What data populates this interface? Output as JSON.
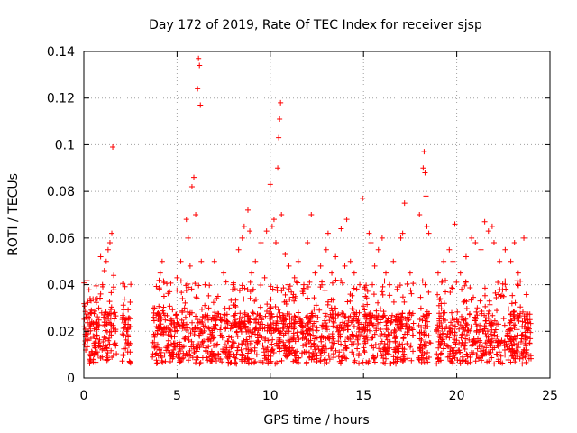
{
  "chart_data": {
    "type": "scatter",
    "title": "Day 172 of 2019, Rate Of TEC Index for receiver sjsp",
    "xlabel": "GPS time / hours",
    "ylabel": "ROTI / TECUs",
    "xlim": [
      0,
      25
    ],
    "ylim": [
      0,
      0.14
    ],
    "xticks": [
      0,
      5,
      10,
      15,
      20,
      25
    ],
    "yticks": [
      0,
      0.02,
      0.04,
      0.06,
      0.08,
      0.1,
      0.12,
      0.14
    ],
    "ytick_labels": [
      "0",
      "0.02",
      "0.04",
      "0.06",
      "0.08",
      "0.1",
      "0.12",
      "0.14"
    ],
    "grid": true,
    "marker": "+",
    "color": "#ff0000",
    "series": [
      {
        "name": "ROTI",
        "points": [
          [
            0.1,
            0.012
          ],
          [
            0.2,
            0.016
          ],
          [
            0.3,
            0.022
          ],
          [
            0.4,
            0.028
          ],
          [
            0.5,
            0.018
          ],
          [
            0.6,
            0.013
          ],
          [
            0.7,
            0.024
          ],
          [
            0.8,
            0.03
          ],
          [
            0.9,
            0.036
          ],
          [
            1.0,
            0.04
          ],
          [
            1.1,
            0.046
          ],
          [
            1.2,
            0.05
          ],
          [
            1.3,
            0.055
          ],
          [
            1.4,
            0.058
          ],
          [
            1.5,
            0.062
          ],
          [
            1.55,
            0.099
          ],
          [
            1.6,
            0.044
          ],
          [
            1.7,
            0.02
          ],
          [
            0.9,
            0.052
          ],
          [
            1.3,
            0.008
          ],
          [
            2.1,
            0.01
          ],
          [
            2.2,
            0.025
          ],
          [
            2.3,
            0.02
          ],
          [
            2.4,
            0.015
          ],
          [
            2.5,
            0.022
          ],
          [
            3.8,
            0.03
          ],
          [
            3.9,
            0.022
          ],
          [
            4.1,
            0.045
          ],
          [
            4.2,
            0.05
          ],
          [
            4.3,
            0.035
          ],
          [
            4.4,
            0.02
          ],
          [
            4.6,
            0.037
          ],
          [
            4.8,
            0.012
          ],
          [
            5.0,
            0.043
          ],
          [
            5.2,
            0.05
          ],
          [
            5.4,
            0.03
          ],
          [
            5.5,
            0.068
          ],
          [
            5.6,
            0.06
          ],
          [
            5.7,
            0.048
          ],
          [
            5.8,
            0.082
          ],
          [
            5.9,
            0.086
          ],
          [
            6.0,
            0.07
          ],
          [
            6.1,
            0.124
          ],
          [
            6.15,
            0.137
          ],
          [
            6.2,
            0.134
          ],
          [
            6.25,
            0.117
          ],
          [
            6.3,
            0.05
          ],
          [
            6.5,
            0.04
          ],
          [
            6.7,
            0.03
          ],
          [
            7.0,
            0.05
          ],
          [
            7.2,
            0.035
          ],
          [
            7.5,
            0.045
          ],
          [
            7.8,
            0.03
          ],
          [
            8.0,
            0.04
          ],
          [
            8.3,
            0.055
          ],
          [
            8.5,
            0.06
          ],
          [
            8.6,
            0.065
          ],
          [
            8.8,
            0.072
          ],
          [
            8.9,
            0.063
          ],
          [
            9.0,
            0.045
          ],
          [
            9.2,
            0.05
          ],
          [
            9.5,
            0.058
          ],
          [
            9.7,
            0.043
          ],
          [
            9.8,
            0.063
          ],
          [
            10.0,
            0.083
          ],
          [
            10.1,
            0.065
          ],
          [
            10.2,
            0.068
          ],
          [
            10.3,
            0.058
          ],
          [
            10.4,
            0.09
          ],
          [
            10.45,
            0.103
          ],
          [
            10.5,
            0.111
          ],
          [
            10.55,
            0.118
          ],
          [
            10.6,
            0.07
          ],
          [
            10.8,
            0.053
          ],
          [
            11.0,
            0.048
          ],
          [
            11.3,
            0.043
          ],
          [
            11.5,
            0.05
          ],
          [
            11.8,
            0.04
          ],
          [
            12.0,
            0.058
          ],
          [
            12.2,
            0.07
          ],
          [
            12.4,
            0.045
          ],
          [
            12.7,
            0.048
          ],
          [
            13.0,
            0.055
          ],
          [
            13.1,
            0.062
          ],
          [
            13.3,
            0.045
          ],
          [
            13.5,
            0.052
          ],
          [
            13.8,
            0.064
          ],
          [
            14.0,
            0.048
          ],
          [
            14.1,
            0.068
          ],
          [
            14.3,
            0.05
          ],
          [
            14.5,
            0.045
          ],
          [
            14.8,
            0.04
          ],
          [
            14.95,
            0.077
          ],
          [
            15.1,
            0.035
          ],
          [
            15.3,
            0.062
          ],
          [
            15.4,
            0.058
          ],
          [
            15.6,
            0.048
          ],
          [
            15.8,
            0.055
          ],
          [
            16.0,
            0.06
          ],
          [
            16.2,
            0.045
          ],
          [
            16.4,
            0.04
          ],
          [
            16.6,
            0.05
          ],
          [
            16.8,
            0.038
          ],
          [
            17.0,
            0.06
          ],
          [
            17.1,
            0.062
          ],
          [
            17.2,
            0.075
          ],
          [
            17.5,
            0.045
          ],
          [
            18.0,
            0.07
          ],
          [
            18.2,
            0.09
          ],
          [
            18.25,
            0.097
          ],
          [
            18.3,
            0.088
          ],
          [
            18.35,
            0.078
          ],
          [
            18.4,
            0.065
          ],
          [
            18.5,
            0.062
          ],
          [
            18.3,
            0.04
          ],
          [
            18.6,
            0.015
          ],
          [
            19.0,
            0.045
          ],
          [
            19.3,
            0.05
          ],
          [
            19.6,
            0.055
          ],
          [
            19.8,
            0.05
          ],
          [
            19.9,
            0.066
          ],
          [
            20.2,
            0.045
          ],
          [
            20.5,
            0.052
          ],
          [
            20.8,
            0.06
          ],
          [
            21.0,
            0.058
          ],
          [
            21.3,
            0.055
          ],
          [
            21.5,
            0.067
          ],
          [
            21.7,
            0.063
          ],
          [
            21.9,
            0.065
          ],
          [
            22.0,
            0.058
          ],
          [
            22.3,
            0.05
          ],
          [
            22.6,
            0.055
          ],
          [
            22.9,
            0.05
          ],
          [
            23.1,
            0.058
          ],
          [
            23.3,
            0.045
          ],
          [
            23.6,
            0.06
          ],
          [
            23.8,
            0.025
          ],
          [
            23.9,
            0.015
          ]
        ]
      }
    ],
    "dense_band": {
      "note": "dense cloud of points near ROTI 0.005-0.035 within observed time ranges",
      "segments_hours": [
        [
          0.0,
          1.75
        ],
        [
          2.05,
          2.55
        ],
        [
          3.65,
          17.7
        ],
        [
          17.95,
          18.6
        ],
        [
          18.9,
          24.0
        ]
      ]
    }
  }
}
